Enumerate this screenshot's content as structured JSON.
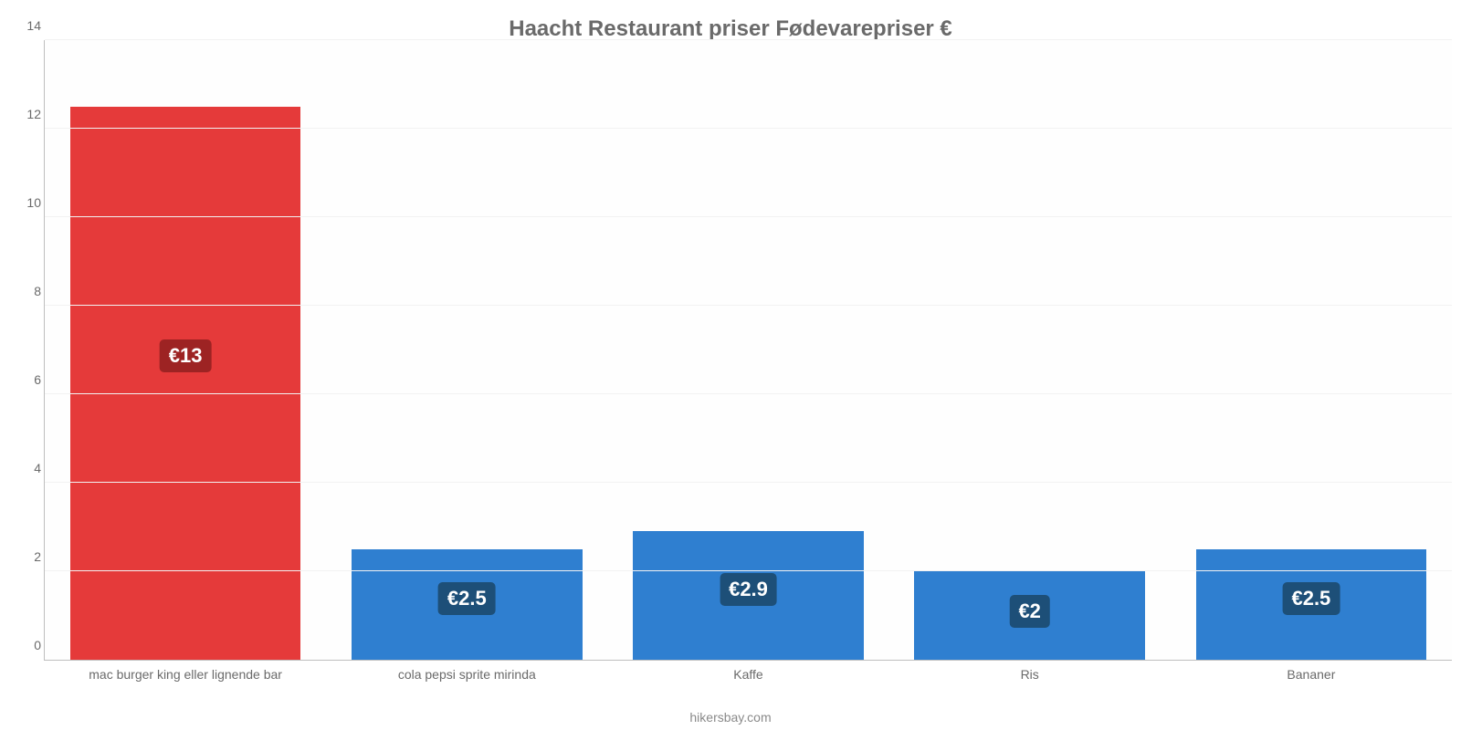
{
  "chart": {
    "type": "bar",
    "title": "Haacht Restaurant priser Fødevarepriser €",
    "title_color": "#6a6a6a",
    "title_fontsize": 24,
    "background_color": "#fefefe",
    "ylim": [
      0,
      14
    ],
    "yticks": [
      0,
      2,
      4,
      6,
      8,
      10,
      12,
      14
    ],
    "ytick_fontsize": 14,
    "grid_color": "#f2f2f2",
    "axis_color": "#bfbfbf",
    "bar_width": 0.82,
    "categories": [
      "mac burger king eller lignende bar",
      "cola pepsi sprite mirinda",
      "Kaffe",
      "Ris",
      "Bananer"
    ],
    "values": [
      12.5,
      2.5,
      2.9,
      2.0,
      2.5
    ],
    "display_labels": [
      "€13",
      "€2.5",
      "€2.9",
      "€2",
      "€2.5"
    ],
    "bar_colors": [
      "#e53a3a",
      "#2f7fd0",
      "#2f7fd0",
      "#2f7fd0",
      "#2f7fd0"
    ],
    "label_bg_colors": [
      "#9d2323",
      "#1d4f78",
      "#1d4f78",
      "#1d4f78",
      "#1d4f78"
    ],
    "label_text_color": "#ffffff",
    "label_fontsize": 22,
    "xtick_fontsize": 14,
    "xtick_color": "#6a6a6a",
    "attribution": "hikersbay.com",
    "attribution_fontsize": 14
  }
}
